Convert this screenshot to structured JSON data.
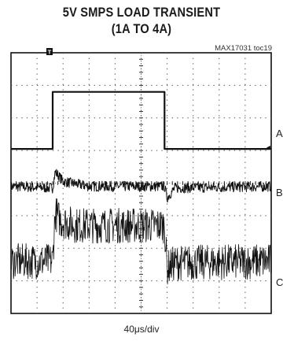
{
  "chart_data": {
    "type": "line",
    "title": "5V SMPS LOAD TRANSIENT",
    "subtitle": "(1A TO 4A)",
    "part_number": "MAX17031 toc19",
    "xlabel": "40μs/div",
    "grid": true,
    "x_divisions": 10,
    "y_divisions": 8,
    "trigger_marker": "T",
    "series": [
      {
        "name": "A",
        "unit": "div",
        "x": [
          0,
          1.6,
          1.6,
          5.9,
          5.9,
          10
        ],
        "values": [
          5.05,
          5.05,
          6.8,
          6.8,
          5.05,
          5.05
        ]
      },
      {
        "name": "B",
        "unit": "div",
        "x": [
          0,
          1.6,
          1.7,
          2.0,
          3.0,
          5.9,
          6.0,
          6.3,
          10
        ],
        "values": [
          3.9,
          3.85,
          4.35,
          4.05,
          3.9,
          3.9,
          3.55,
          3.85,
          3.9
        ]
      },
      {
        "name": "C",
        "unit": "div",
        "x": [
          0,
          1.6,
          1.7,
          1.9,
          2.5,
          5.9,
          6.0,
          6.3,
          10
        ],
        "values": [
          1.6,
          1.6,
          3.1,
          2.85,
          2.7,
          2.7,
          1.4,
          1.55,
          1.6
        ]
      }
    ]
  }
}
